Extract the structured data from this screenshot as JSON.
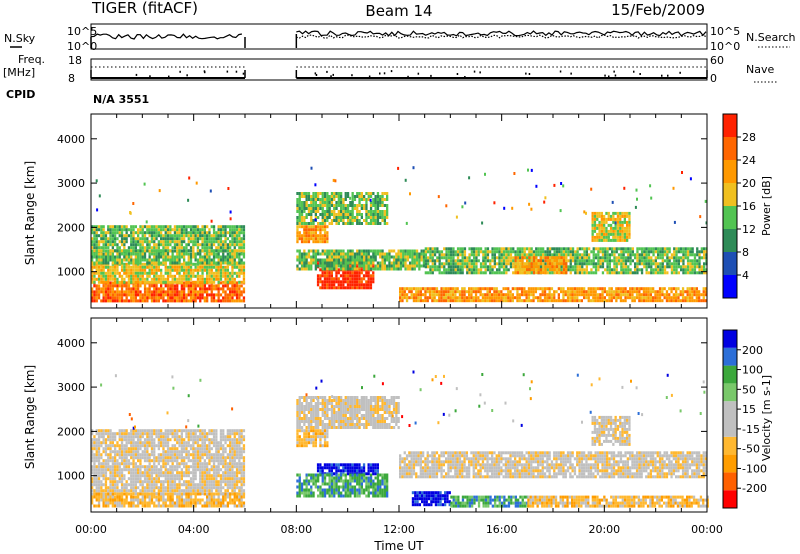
{
  "header": {
    "title": "TIGER (fitACF)",
    "beam": "Beam 14",
    "date": "15/Feb/2009"
  },
  "nsky_panel": {
    "left_label": "N.Sky",
    "right_label": "N.Search",
    "left_ticks": [
      "10^5",
      "10^0"
    ],
    "right_ticks": [
      "10^5",
      "10^0"
    ]
  },
  "freq_panel": {
    "left_label_1": "Freq.",
    "left_label_2": "[MHz]",
    "right_label": "Nave",
    "left_ticks": [
      "18",
      "8"
    ],
    "right_ticks": [
      "60",
      "0"
    ]
  },
  "cpid": {
    "label": "CPID",
    "value": "N/A 3551"
  },
  "colors": {
    "power": [
      "#0000ff",
      "#1e4fb4",
      "#2e8b57",
      "#52c452",
      "#f0c020",
      "#ff9900",
      "#ff6600",
      "#ff2200"
    ],
    "velocity": [
      "#ff0000",
      "#ff6000",
      "#ff9d00",
      "#ffb830",
      "#c0c0c0",
      "#c0c0c0",
      "#79c86a",
      "#3ca83c",
      "#2c6fd8",
      "#0000e0"
    ]
  },
  "chart_data": [
    {
      "type": "heatmap",
      "name": "power",
      "ylabel": "Slant Range [km]",
      "ylim": [
        180,
        4560
      ],
      "yticks": [
        "1000",
        "2000",
        "3000",
        "4000"
      ],
      "xlim": [
        0,
        24
      ],
      "colorbar": {
        "label": "Power [dB]",
        "ticks": [
          "4",
          "8",
          "12",
          "16",
          "20",
          "24",
          "28"
        ]
      },
      "regions": [
        {
          "t": [
            0,
            6
          ],
          "r": [
            330,
            780
          ],
          "level": 6
        },
        {
          "t": [
            0,
            6
          ],
          "r": [
            780,
            1200
          ],
          "level": 4
        },
        {
          "t": [
            0,
            6
          ],
          "r": [
            1200,
            1500
          ],
          "level": 3
        },
        {
          "t": [
            0,
            6
          ],
          "r": [
            1500,
            2050
          ],
          "level": 3
        },
        {
          "t": [
            8,
            9.2
          ],
          "r": [
            1650,
            2050
          ],
          "level": 5
        },
        {
          "t": [
            8,
            11.5
          ],
          "r": [
            2100,
            2800
          ],
          "level": 3
        },
        {
          "t": [
            8.8,
            11
          ],
          "r": [
            620,
            1280
          ],
          "level": 7
        },
        {
          "t": [
            8,
            13
          ],
          "r": [
            1050,
            1500
          ],
          "level": 3
        },
        {
          "t": [
            13,
            24
          ],
          "r": [
            950,
            1550
          ],
          "level": 3
        },
        {
          "t": [
            16.5,
            18.5
          ],
          "r": [
            950,
            1350
          ],
          "level": 5
        },
        {
          "t": [
            12,
            24
          ],
          "r": [
            320,
            650
          ],
          "level": 5
        },
        {
          "t": [
            19.5,
            21
          ],
          "r": [
            1700,
            2350
          ],
          "level": 4
        }
      ]
    },
    {
      "type": "heatmap",
      "name": "velocity",
      "ylabel": "Slant Range [km]",
      "ylim": [
        180,
        4560
      ],
      "yticks": [
        "1000",
        "2000",
        "3000",
        "4000"
      ],
      "xlim": [
        0,
        24
      ],
      "xticks": [
        "00:00",
        "04:00",
        "08:00",
        "12:00",
        "16:00",
        "20:00",
        "00:00"
      ],
      "xlabel": "Time UT",
      "colorbar": {
        "label": "Velocity [m s-1]",
        "ticks": [
          "-200",
          "-100",
          "-50",
          "-15",
          "15",
          "50",
          "100",
          "200"
        ]
      },
      "regions": [
        {
          "t": [
            0,
            6
          ],
          "r": [
            620,
            2050
          ],
          "level": 4
        },
        {
          "t": [
            0,
            6
          ],
          "r": [
            330,
            620
          ],
          "level": 3
        },
        {
          "t": [
            8,
            12
          ],
          "r": [
            2100,
            2800
          ],
          "level": 4
        },
        {
          "t": [
            8,
            9.2
          ],
          "r": [
            1650,
            2050
          ],
          "level": 3
        },
        {
          "t": [
            8.8,
            11.2
          ],
          "r": [
            1050,
            1280
          ],
          "level": 9
        },
        {
          "t": [
            8,
            11.5
          ],
          "r": [
            550,
            1050
          ],
          "level": 7
        },
        {
          "t": [
            12,
            24
          ],
          "r": [
            950,
            1550
          ],
          "level": 4
        },
        {
          "t": [
            12.5,
            14
          ],
          "r": [
            350,
            650
          ],
          "level": 9
        },
        {
          "t": [
            14,
            17
          ],
          "r": [
            330,
            550
          ],
          "level": 7
        },
        {
          "t": [
            17,
            24
          ],
          "r": [
            330,
            550
          ],
          "level": 3
        },
        {
          "t": [
            19.5,
            21
          ],
          "r": [
            1700,
            2350
          ],
          "level": 4
        }
      ]
    }
  ]
}
